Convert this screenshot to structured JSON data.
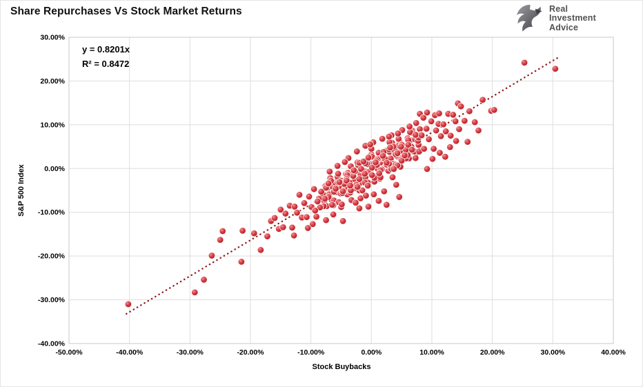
{
  "title": "Share Repurchases Vs Stock Market Returns",
  "logo": {
    "line1": "Real",
    "line2": "Investment",
    "line3": "Advice"
  },
  "annotation": {
    "equation": "y = 0.8201x",
    "r_squared": "R² = 0.8472"
  },
  "colors": {
    "marker_main": "#d63940",
    "marker_light": "#ef9094",
    "marker_dark": "#9d151c",
    "marker_edge": "#ffffff",
    "trendline": "#8f2020",
    "grid": "#dedede",
    "plot_border": "#c9c9c9",
    "logo_gray": "#58595b",
    "logo_gray_light": "#939598"
  },
  "chart_data": {
    "type": "scatter",
    "title": "Share Repurchases Vs Stock Market Returns",
    "xlabel": "Stock Buybacks",
    "ylabel": "S&P 500 Index",
    "xlim": [
      -50,
      40
    ],
    "ylim": [
      -40,
      30
    ],
    "grid": true,
    "legend": "none",
    "x_tick_values": [
      -50,
      -40,
      -30,
      -20,
      -10,
      0,
      10,
      20,
      30,
      40
    ],
    "x_tick_labels": [
      "-50.00%",
      "-40.00%",
      "-30.00%",
      "-20.00%",
      "-10.00%",
      "0.00%",
      "10.00%",
      "20.00%",
      "30.00%",
      "40.00%"
    ],
    "y_tick_values": [
      30,
      20,
      10,
      0,
      -10,
      -20,
      -30,
      -40
    ],
    "y_tick_labels": [
      "30.00%",
      "20.00%",
      "10.00%",
      "0.00%",
      "-10.00%",
      "-20.00%",
      "-30.00%",
      "-40.00%"
    ],
    "trendline": {
      "equation": "y = 0.8201x",
      "slope": 0.8201,
      "r2": 0.8472,
      "style": "dotted",
      "x1": -40.5,
      "y1": -33.2,
      "x2": 30.8,
      "y2": 25.3
    },
    "units": "percent",
    "points": [
      [
        -8.0,
        -5.9
      ],
      [
        -7.8,
        -7.4
      ],
      [
        -7.6,
        -4.0
      ],
      [
        -7.4,
        -8.6
      ],
      [
        -7.2,
        -4.4
      ],
      [
        -7.0,
        -5.9
      ],
      [
        -6.8,
        -2.2
      ],
      [
        -6.6,
        -7.1
      ],
      [
        -6.4,
        -4.2
      ],
      [
        -6.2,
        -7.3
      ],
      [
        -6.0,
        -3.2
      ],
      [
        -5.8,
        -5.4
      ],
      [
        -5.6,
        -1.9
      ],
      [
        -5.4,
        -7.7
      ],
      [
        -5.2,
        -4.1
      ],
      [
        -5.0,
        -2.8
      ],
      [
        -4.8,
        -5.4
      ],
      [
        -4.6,
        -3.2
      ],
      [
        -4.4,
        -4.7
      ],
      [
        -4.2,
        -1.3
      ],
      [
        -4.0,
        -5.9
      ],
      [
        -3.8,
        -1.6
      ],
      [
        -3.6,
        -3.2
      ],
      [
        -3.4,
        0.5
      ],
      [
        -3.2,
        -4.4
      ],
      [
        -3.0,
        -1.5
      ],
      [
        -2.8,
        -4.5
      ],
      [
        -2.6,
        -0.5
      ],
      [
        -2.4,
        -2.7
      ],
      [
        -2.2,
        0.8
      ],
      [
        -2.0,
        -5.0
      ],
      [
        -1.8,
        -1.3
      ],
      [
        -1.6,
        -0.1
      ],
      [
        -1.4,
        -2.7
      ],
      [
        -1.2,
        -0.5
      ],
      [
        -1.0,
        -2.0
      ],
      [
        -0.8,
        1.5
      ],
      [
        -0.6,
        -3.2
      ],
      [
        -0.4,
        1.1
      ],
      [
        -0.2,
        -0.5
      ],
      [
        0.0,
        3.2
      ],
      [
        0.2,
        -1.6
      ],
      [
        0.4,
        1.2
      ],
      [
        0.6,
        -1.8
      ],
      [
        0.8,
        2.2
      ],
      [
        1.0,
        0.0
      ],
      [
        1.2,
        3.6
      ],
      [
        1.4,
        -2.3
      ],
      [
        1.6,
        1.4
      ],
      [
        1.8,
        2.6
      ],
      [
        2.0,
        0.0
      ],
      [
        2.2,
        2.3
      ],
      [
        2.4,
        0.7
      ],
      [
        2.6,
        4.2
      ],
      [
        2.8,
        -0.5
      ],
      [
        3.0,
        3.8
      ],
      [
        3.2,
        2.3
      ],
      [
        3.4,
        5.9
      ],
      [
        3.6,
        1.1
      ],
      [
        3.8,
        3.9
      ],
      [
        4.0,
        0.9
      ],
      [
        4.2,
        5.0
      ],
      [
        4.4,
        2.7
      ],
      [
        4.6,
        6.3
      ],
      [
        4.8,
        0.4
      ],
      [
        5.0,
        4.1
      ],
      [
        5.2,
        5.4
      ],
      [
        5.4,
        2.7
      ],
      [
        5.6,
        5.0
      ],
      [
        5.8,
        3.4
      ],
      [
        6.0,
        6.9
      ],
      [
        6.2,
        2.3
      ],
      [
        6.4,
        6.5
      ],
      [
        6.6,
        5.0
      ],
      [
        6.8,
        8.6
      ],
      [
        7.0,
        3.8
      ],
      [
        7.2,
        6.7
      ],
      [
        7.4,
        3.6
      ],
      [
        7.6,
        7.7
      ],
      [
        7.8,
        5.4
      ],
      [
        8.0,
        9.0
      ],
      [
        -7.9,
        -8.6
      ],
      [
        -7.5,
        -4.4
      ],
      [
        -7.1,
        -6.5
      ],
      [
        -6.7,
        -2.8
      ],
      [
        -6.3,
        -8.4
      ],
      [
        -5.9,
        -4.6
      ],
      [
        -5.5,
        -3.2
      ],
      [
        -5.1,
        -5.7
      ],
      [
        -4.7,
        -3.3
      ],
      [
        -4.3,
        -4.6
      ],
      [
        -3.9,
        -1.0
      ],
      [
        -3.5,
        -5.5
      ],
      [
        -3.1,
        -1.1
      ],
      [
        -2.7,
        -2.5
      ],
      [
        -2.3,
        1.4
      ],
      [
        -1.9,
        -3.3
      ],
      [
        -1.5,
        -0.3
      ],
      [
        -1.1,
        -3.2
      ],
      [
        -0.7,
        1.0
      ],
      [
        -0.3,
        -1.0
      ],
      [
        0.1,
        2.7
      ],
      [
        0.5,
        -3.0
      ],
      [
        0.9,
        0.8
      ],
      [
        1.3,
        2.2
      ],
      [
        1.7,
        -0.2
      ],
      [
        2.1,
        2.2
      ],
      [
        2.5,
        0.8
      ],
      [
        2.9,
        4.4
      ],
      [
        3.3,
        -0.1
      ],
      [
        3.7,
        4.4
      ],
      [
        4.1,
        3.0
      ],
      [
        4.5,
        6.8
      ],
      [
        4.9,
        2.1
      ],
      [
        5.3,
        5.1
      ],
      [
        5.7,
        2.3
      ],
      [
        6.1,
        6.5
      ],
      [
        6.5,
        4.4
      ],
      [
        6.9,
        8.1
      ],
      [
        7.3,
        2.4
      ],
      [
        7.7,
        6.3
      ],
      [
        8.1,
        7.7
      ],
      [
        -5.0,
        -8.8
      ],
      [
        -4.5,
        -3.5
      ],
      [
        -4.0,
        -1.5
      ],
      [
        -3.5,
        -5.0
      ],
      [
        -3.0,
        -1.7
      ],
      [
        -2.5,
        -3.7
      ],
      [
        -2.0,
        1.3
      ],
      [
        -1.5,
        -5.0
      ],
      [
        -1.0,
        1.2
      ],
      [
        -0.5,
        -0.8
      ],
      [
        0.0,
        4.5
      ],
      [
        0.5,
        -2.1
      ],
      [
        1.0,
        2.1
      ],
      [
        1.5,
        -2.0
      ],
      [
        2.0,
        3.8
      ],
      [
        2.5,
        0.9
      ],
      [
        3.0,
        6.0
      ],
      [
        3.5,
        -2.0
      ],
      [
        4.0,
        3.3
      ],
      [
        4.5,
        5.3
      ],
      [
        5.0,
        1.8
      ],
      [
        5.5,
        5.1
      ],
      [
        6.0,
        3.1
      ],
      [
        -6.2,
        -5.3
      ],
      [
        -5.5,
        -1.2
      ],
      [
        -4.8,
        -5.6
      ],
      [
        -4.1,
        -2.4
      ],
      [
        -3.4,
        -5.0
      ],
      [
        -2.7,
        -0.6
      ],
      [
        -2.0,
        -2.4
      ],
      [
        -1.3,
        1.6
      ],
      [
        -0.6,
        -3.9
      ],
      [
        0.1,
        0.2
      ],
      [
        0.8,
        1.8
      ],
      [
        1.5,
        -0.4
      ],
      [
        2.2,
        2.3
      ],
      [
        2.9,
        1.1
      ],
      [
        3.6,
        5.0
      ],
      [
        4.3,
        0.7
      ],
      [
        5.0,
        5.4
      ],
      [
        5.7,
        4.3
      ],
      [
        6.4,
        8.3
      ],
      [
        7.1,
        3.9
      ],
      [
        7.8,
        7.1
      ],
      [
        -7.7,
        -6.9
      ],
      [
        -7.1,
        -3.4
      ],
      [
        -6.5,
        -8.3
      ],
      [
        -5.9,
        -4.6
      ],
      [
        -5.3,
        -3.1
      ],
      [
        -4.7,
        -5.2
      ],
      [
        -4.1,
        -2.8
      ],
      [
        -3.5,
        -3.9
      ],
      [
        -2.9,
        -0.4
      ],
      [
        -2.3,
        -4.2
      ],
      [
        -1.7,
        -0.1
      ],
      [
        -1.1,
        -1.2
      ],
      [
        -0.5,
        2.5
      ],
      [
        0.1,
        -1.5
      ],
      [
        0.7,
        1.4
      ],
      [
        1.3,
        -1.1
      ],
      [
        1.9,
        2.9
      ],
      [
        2.5,
        1.3
      ],
      [
        3.1,
        4.8
      ],
      [
        3.7,
        -0.1
      ],
      [
        4.3,
        3.5
      ],
      [
        4.9,
        5.0
      ],
      [
        5.5,
        3.0
      ],
      [
        6.1,
        5.4
      ],
      [
        6.7,
        4.3
      ],
      [
        7.3,
        7.7
      ],
      [
        7.9,
        3.9
      ],
      [
        -13.5,
        -8.5
      ],
      [
        -13.1,
        -13.5
      ],
      [
        -12.7,
        -8.7
      ],
      [
        -12.3,
        -10.1
      ],
      [
        -11.9,
        -6.0
      ],
      [
        -11.5,
        -11.2
      ],
      [
        -11.1,
        -7.9
      ],
      [
        -10.7,
        -11.1
      ],
      [
        -10.3,
        -6.4
      ],
      [
        -9.9,
        -8.8
      ],
      [
        -9.5,
        -4.7
      ],
      [
        -9.1,
        -11.0
      ],
      [
        -8.7,
        -6.9
      ],
      [
        -8.3,
        -5.3
      ],
      [
        8.3,
        7.6
      ],
      [
        8.7,
        4.5
      ],
      [
        9.1,
        9.1
      ],
      [
        9.5,
        6.7
      ],
      [
        9.9,
        10.8
      ],
      [
        10.3,
        4.5
      ],
      [
        10.7,
        8.7
      ],
      [
        11.1,
        10.2
      ],
      [
        11.5,
        7.4
      ],
      [
        11.9,
        10.1
      ],
      [
        12.3,
        8.5
      ],
      [
        12.7,
        12.5
      ],
      [
        13.1,
        7.5
      ],
      [
        13.5,
        12.3
      ],
      [
        13.9,
        10.8
      ],
      [
        14.3,
        14.9
      ],
      [
        -40.2,
        -31.0
      ],
      [
        -29.2,
        -28.3
      ],
      [
        -27.7,
        -25.4
      ],
      [
        -26.4,
        -19.9
      ],
      [
        -25.0,
        -16.3
      ],
      [
        -24.6,
        -14.3
      ],
      [
        -21.5,
        -21.3
      ],
      [
        -21.3,
        -14.2
      ],
      [
        -19.4,
        -14.8
      ],
      [
        -18.3,
        -18.6
      ],
      [
        -17.2,
        -15.5
      ],
      [
        -16.6,
        -12.0
      ],
      [
        -16.0,
        -11.3
      ],
      [
        -15.3,
        -13.8
      ],
      [
        -15.0,
        -9.4
      ],
      [
        -14.6,
        -13.4
      ],
      [
        -14.2,
        -10.3
      ],
      [
        -12.8,
        -15.3
      ],
      [
        -10.5,
        -13.6
      ],
      [
        -9.7,
        -12.7
      ],
      [
        -7.5,
        -11.8
      ],
      [
        -6.3,
        -10.5
      ],
      [
        -4.7,
        -12.0
      ],
      [
        14.8,
        14.2
      ],
      [
        15.4,
        10.9
      ],
      [
        16.2,
        13.1
      ],
      [
        17.1,
        10.6
      ],
      [
        17.7,
        8.7
      ],
      [
        18.4,
        15.7
      ],
      [
        19.8,
        13.2
      ],
      [
        20.3,
        13.4
      ],
      [
        15.9,
        6.1
      ],
      [
        14.5,
        9.0
      ],
      [
        25.3,
        24.2
      ],
      [
        30.4,
        22.8
      ],
      [
        8.0,
        12.5
      ],
      [
        9.2,
        12.8
      ],
      [
        10.5,
        12.2
      ],
      [
        8.6,
        11.6
      ],
      [
        11.2,
        12.6
      ],
      [
        2.5,
        -8.3
      ],
      [
        4.6,
        -6.5
      ],
      [
        -0.5,
        -8.7
      ],
      [
        1.2,
        -7.4
      ],
      [
        -2.0,
        -9.1
      ],
      [
        9.2,
        -0.1
      ],
      [
        0.3,
        6.0
      ],
      [
        1.8,
        6.8
      ],
      [
        -1.0,
        5.2
      ],
      [
        -2.4,
        3.9
      ],
      [
        3.3,
        7.6
      ],
      [
        -3.8,
        2.4
      ],
      [
        5.1,
        8.8
      ],
      [
        6.3,
        9.6
      ],
      [
        -5.6,
        0.6
      ],
      [
        -4.4,
        1.5
      ],
      [
        2.9,
        7.3
      ],
      [
        7.4,
        10.4
      ],
      [
        -6.9,
        -0.7
      ],
      [
        -0.2,
        5.5
      ],
      [
        4.4,
        8.0
      ],
      [
        -3.3,
        -7.2
      ],
      [
        -1.8,
        -6.8
      ],
      [
        0.4,
        -5.9
      ],
      [
        2.1,
        -5.2
      ],
      [
        -0.9,
        -6.2
      ],
      [
        -2.6,
        -7.8
      ],
      [
        4.1,
        -3.7
      ],
      [
        -4.9,
        -8.2
      ],
      [
        12.2,
        2.7
      ],
      [
        13.0,
        4.9
      ],
      [
        11.3,
        3.6
      ],
      [
        10.1,
        2.2
      ],
      [
        14.0,
        6.3
      ],
      [
        -8.5,
        -8.9
      ],
      [
        -8.9,
        -7.5
      ],
      [
        -9.3,
        -9.6
      ]
    ]
  }
}
